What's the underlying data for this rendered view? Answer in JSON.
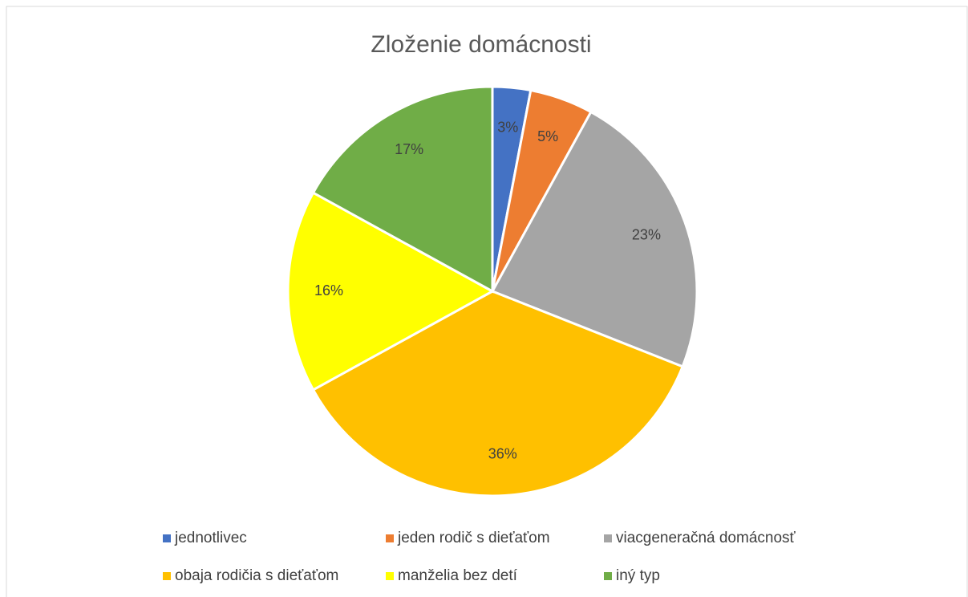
{
  "chart_data": {
    "type": "pie",
    "title": "Zloženie domácnosti",
    "categories": [
      "jednotlivec",
      "jeden rodič s dieťaťom",
      "viacgeneračná domácnosť",
      "obaja rodičia s dieťaťom",
      "manželia bez detí",
      "iný typ"
    ],
    "values": [
      3,
      5,
      23,
      36,
      16,
      17
    ],
    "value_labels": [
      "3%",
      "5%",
      "23%",
      "36%",
      "16%",
      "17%"
    ],
    "colors": [
      "#4472c4",
      "#ed7d31",
      "#a5a5a5",
      "#ffc000",
      "#ffff00",
      "#70ad47"
    ],
    "legend": "bottom"
  }
}
